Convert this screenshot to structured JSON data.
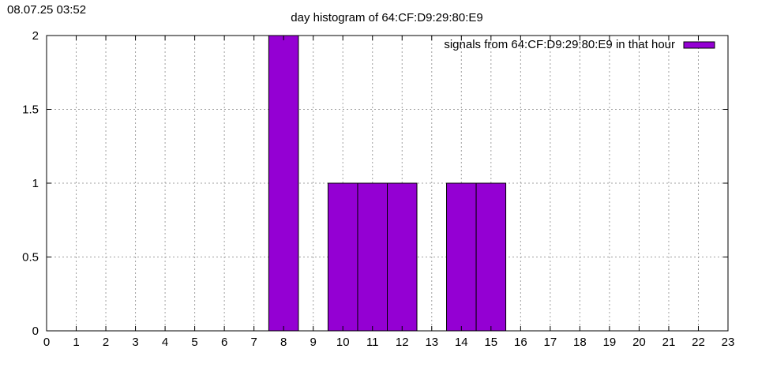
{
  "timestamp": "08.07.25 03:52",
  "chart_data": {
    "type": "bar",
    "title": "day histogram of 64:CF:D9:29:80:E9",
    "xlabel": "",
    "ylabel": "",
    "xlim": [
      0,
      23
    ],
    "ylim": [
      0,
      2
    ],
    "x_ticks": [
      "0",
      "1",
      "2",
      "3",
      "4",
      "5",
      "6",
      "7",
      "8",
      "9",
      "10",
      "11",
      "12",
      "13",
      "14",
      "15",
      "16",
      "17",
      "18",
      "19",
      "20",
      "21",
      "22",
      "23"
    ],
    "y_ticks": [
      "0",
      "0.5",
      "1",
      "1.5",
      "2"
    ],
    "grid": true,
    "legend_position": "top-right",
    "series": [
      {
        "name": "signals from 64:CF:D9:29:80:E9 in that hour",
        "color": "#9400d3",
        "x": [
          8,
          10,
          11,
          12,
          14,
          15
        ],
        "values": [
          2,
          1,
          1,
          1,
          1,
          1
        ]
      }
    ]
  }
}
